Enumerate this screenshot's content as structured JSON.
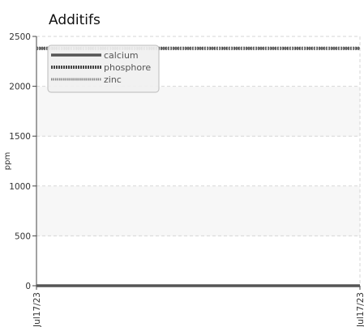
{
  "chart_data": {
    "type": "line",
    "title": "Additifs",
    "xlabel": "",
    "ylabel": "ppm",
    "x": [
      "Jul17/23",
      "Jul17/23"
    ],
    "xticks": [
      "Jul17/23",
      "Jul17/23"
    ],
    "ylim": [
      0,
      2500
    ],
    "yticks": [
      0,
      500,
      1000,
      1500,
      2000,
      2500
    ],
    "grid": true,
    "legend": "top-left",
    "series": [
      {
        "name": "calcium",
        "values": [
          0,
          0
        ],
        "color": "#555555",
        "style": "solid"
      },
      {
        "name": "phosphore",
        "values": [
          2380,
          2380
        ],
        "color": "#444444",
        "style": "dense-dash"
      },
      {
        "name": "zinc",
        "values": [
          2380,
          2380
        ],
        "color": "#888888",
        "style": "fine-dash"
      }
    ]
  }
}
